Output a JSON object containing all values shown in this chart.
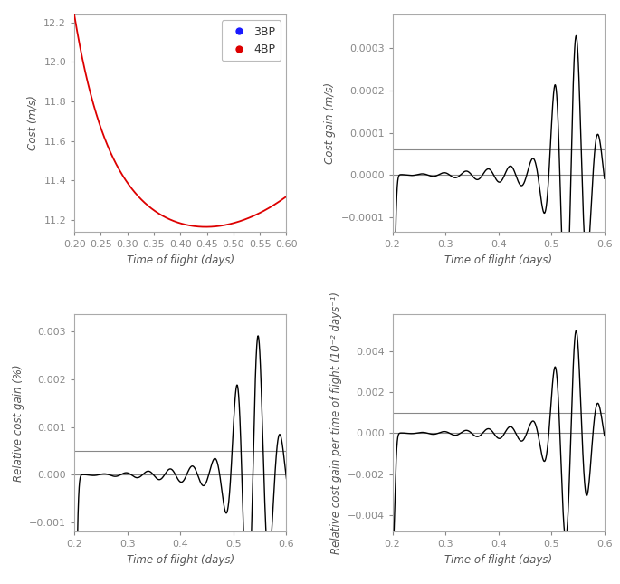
{
  "x_range": [
    0.2,
    0.6
  ],
  "x_ticks_top": [
    0.2,
    0.25,
    0.3,
    0.35,
    0.4,
    0.45,
    0.5,
    0.55,
    0.6
  ],
  "x_ticks_bottom": [
    0.2,
    0.3,
    0.4,
    0.5,
    0.6
  ],
  "xlabel": "Time of flight (days)",
  "plot1": {
    "ylabel": "Cost (m/s)",
    "ylim": [
      11.14,
      12.24
    ],
    "yticks": [
      11.2,
      11.4,
      11.6,
      11.8,
      12.0,
      12.2
    ],
    "color_4bp": "#dd0000",
    "color_3bp": "#1a1aff",
    "legend_labels": [
      "3BP",
      "4BP"
    ]
  },
  "plot2": {
    "ylabel": "Cost gain (m/s)",
    "ylim": [
      -0.000135,
      0.00038
    ],
    "yticks": [
      -0.0001,
      0.0,
      0.0001,
      0.0002,
      0.0003
    ],
    "hline_zero": 0.0,
    "hline_ref": 6e-05
  },
  "plot3": {
    "ylabel": "Relative cost gain (%)",
    "ylim": [
      -0.00118,
      0.00335
    ],
    "yticks": [
      -0.001,
      0.0,
      0.001,
      0.002,
      0.003
    ],
    "hline_zero": 0.0,
    "hline_ref": 0.0005
  },
  "plot4": {
    "ylabel": "Relative cost gain per time of flight (10⁻² days⁻¹)",
    "ylim": [
      -0.0048,
      0.0058
    ],
    "yticks": [
      -0.004,
      -0.002,
      0.0,
      0.002,
      0.004
    ],
    "hline_zero": 0.0,
    "hline_ref": 0.001
  },
  "label_color": "#555555",
  "tick_color": "#888888",
  "spine_color": "#aaaaaa",
  "hline_color": "#888888",
  "curve_color_osc": "#000000",
  "label_fontsize": 8.5,
  "tick_fontsize": 8
}
